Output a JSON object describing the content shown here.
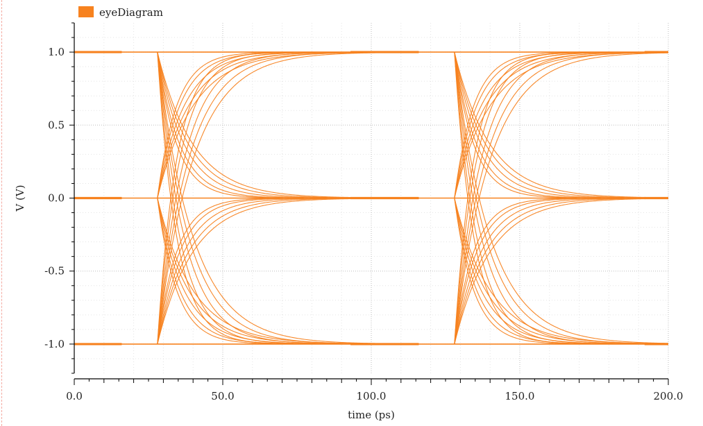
{
  "chart_data": {
    "type": "line",
    "title": "",
    "xlabel": "time (ps)",
    "ylabel": "V (V)",
    "xlim": [
      0,
      200
    ],
    "ylim": [
      -1.2,
      1.2
    ],
    "x_ticks": [
      0,
      50,
      100,
      150,
      200
    ],
    "x_tick_labels": [
      "0.0",
      "50.0",
      "100.0",
      "150.0",
      "200.0"
    ],
    "y_ticks": [
      1.0,
      0.5,
      0.0,
      -0.5,
      -1.0
    ],
    "y_tick_labels": [
      "1.0",
      "0.5",
      "0.0",
      "-0.5",
      "-1.0"
    ],
    "grid": true,
    "legend": {
      "placement": "top-left",
      "entries": [
        "eyeDiagram"
      ]
    },
    "series": [
      {
        "name": "eyeDiagram",
        "color": "#f7821f",
        "levels": [
          -1.0,
          0.0,
          1.0
        ],
        "transition_starts_ps": [
          28,
          128
        ],
        "time_constants_ps": [
          6.5,
          7.5,
          9,
          10.5,
          12
        ],
        "transitions": [
          {
            "from": 1.0,
            "to": 0.0
          },
          {
            "from": 1.0,
            "to": -1.0
          },
          {
            "from": 0.0,
            "to": 1.0
          },
          {
            "from": 0.0,
            "to": -1.0
          },
          {
            "from": -1.0,
            "to": 0.0
          },
          {
            "from": -1.0,
            "to": 1.0
          }
        ]
      }
    ]
  }
}
